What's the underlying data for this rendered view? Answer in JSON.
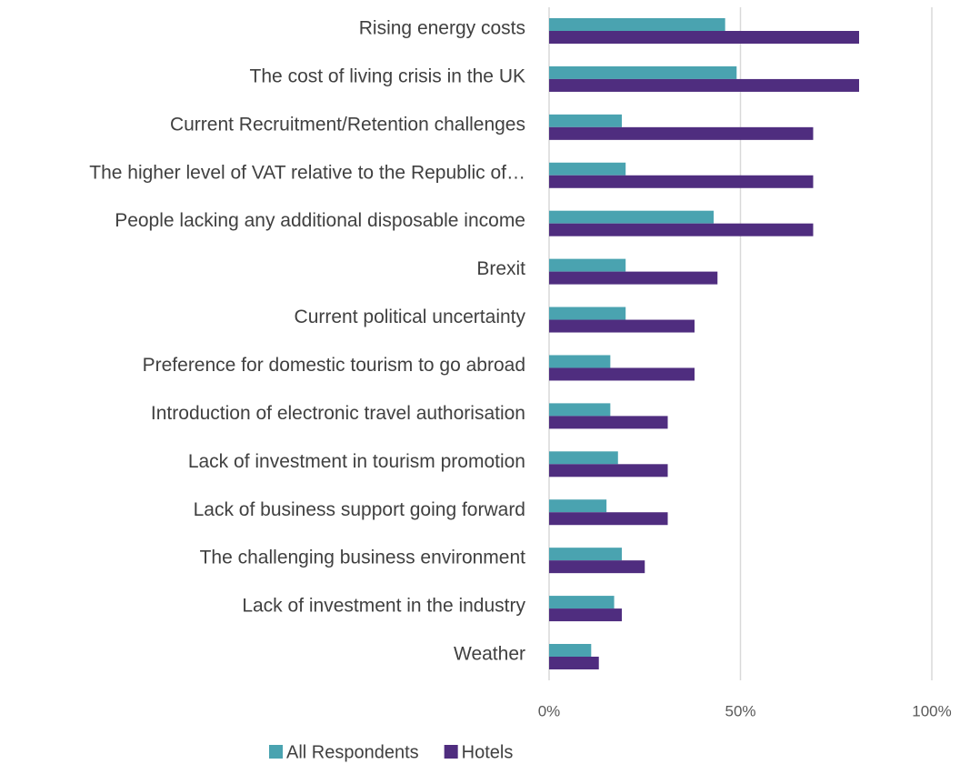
{
  "chart_data": {
    "type": "hbar",
    "categories": [
      "Rising energy costs",
      "The cost of living crisis in the UK",
      "Current Recruitment/Retention challenges",
      "The higher level of VAT relative to the Republic of…",
      "People lacking any additional disposable income",
      "Brexit",
      "Current political uncertainty",
      "Preference for domestic tourism to go abroad",
      "Introduction of electronic travel authorisation",
      "Lack of investment in tourism promotion",
      "Lack of business support going forward",
      "The challenging business environment",
      "Lack of investment in the industry",
      "Weather"
    ],
    "series": [
      {
        "name": "All Respondents",
        "color": "#4aa3b0",
        "values": [
          46,
          49,
          19,
          20,
          43,
          20,
          20,
          16,
          16,
          18,
          15,
          19,
          17,
          11
        ]
      },
      {
        "name": "Hotels",
        "color": "#4f2d7f",
        "values": [
          81,
          81,
          69,
          69,
          69,
          44,
          38,
          38,
          31,
          31,
          31,
          25,
          19,
          13
        ]
      }
    ],
    "xlim": [
      0,
      100
    ],
    "xticks": [
      {
        "value": 0,
        "label": "0%"
      },
      {
        "value": 50,
        "label": "50%"
      },
      {
        "value": 100,
        "label": "100%"
      }
    ],
    "grid": true,
    "legend": "bottom"
  }
}
